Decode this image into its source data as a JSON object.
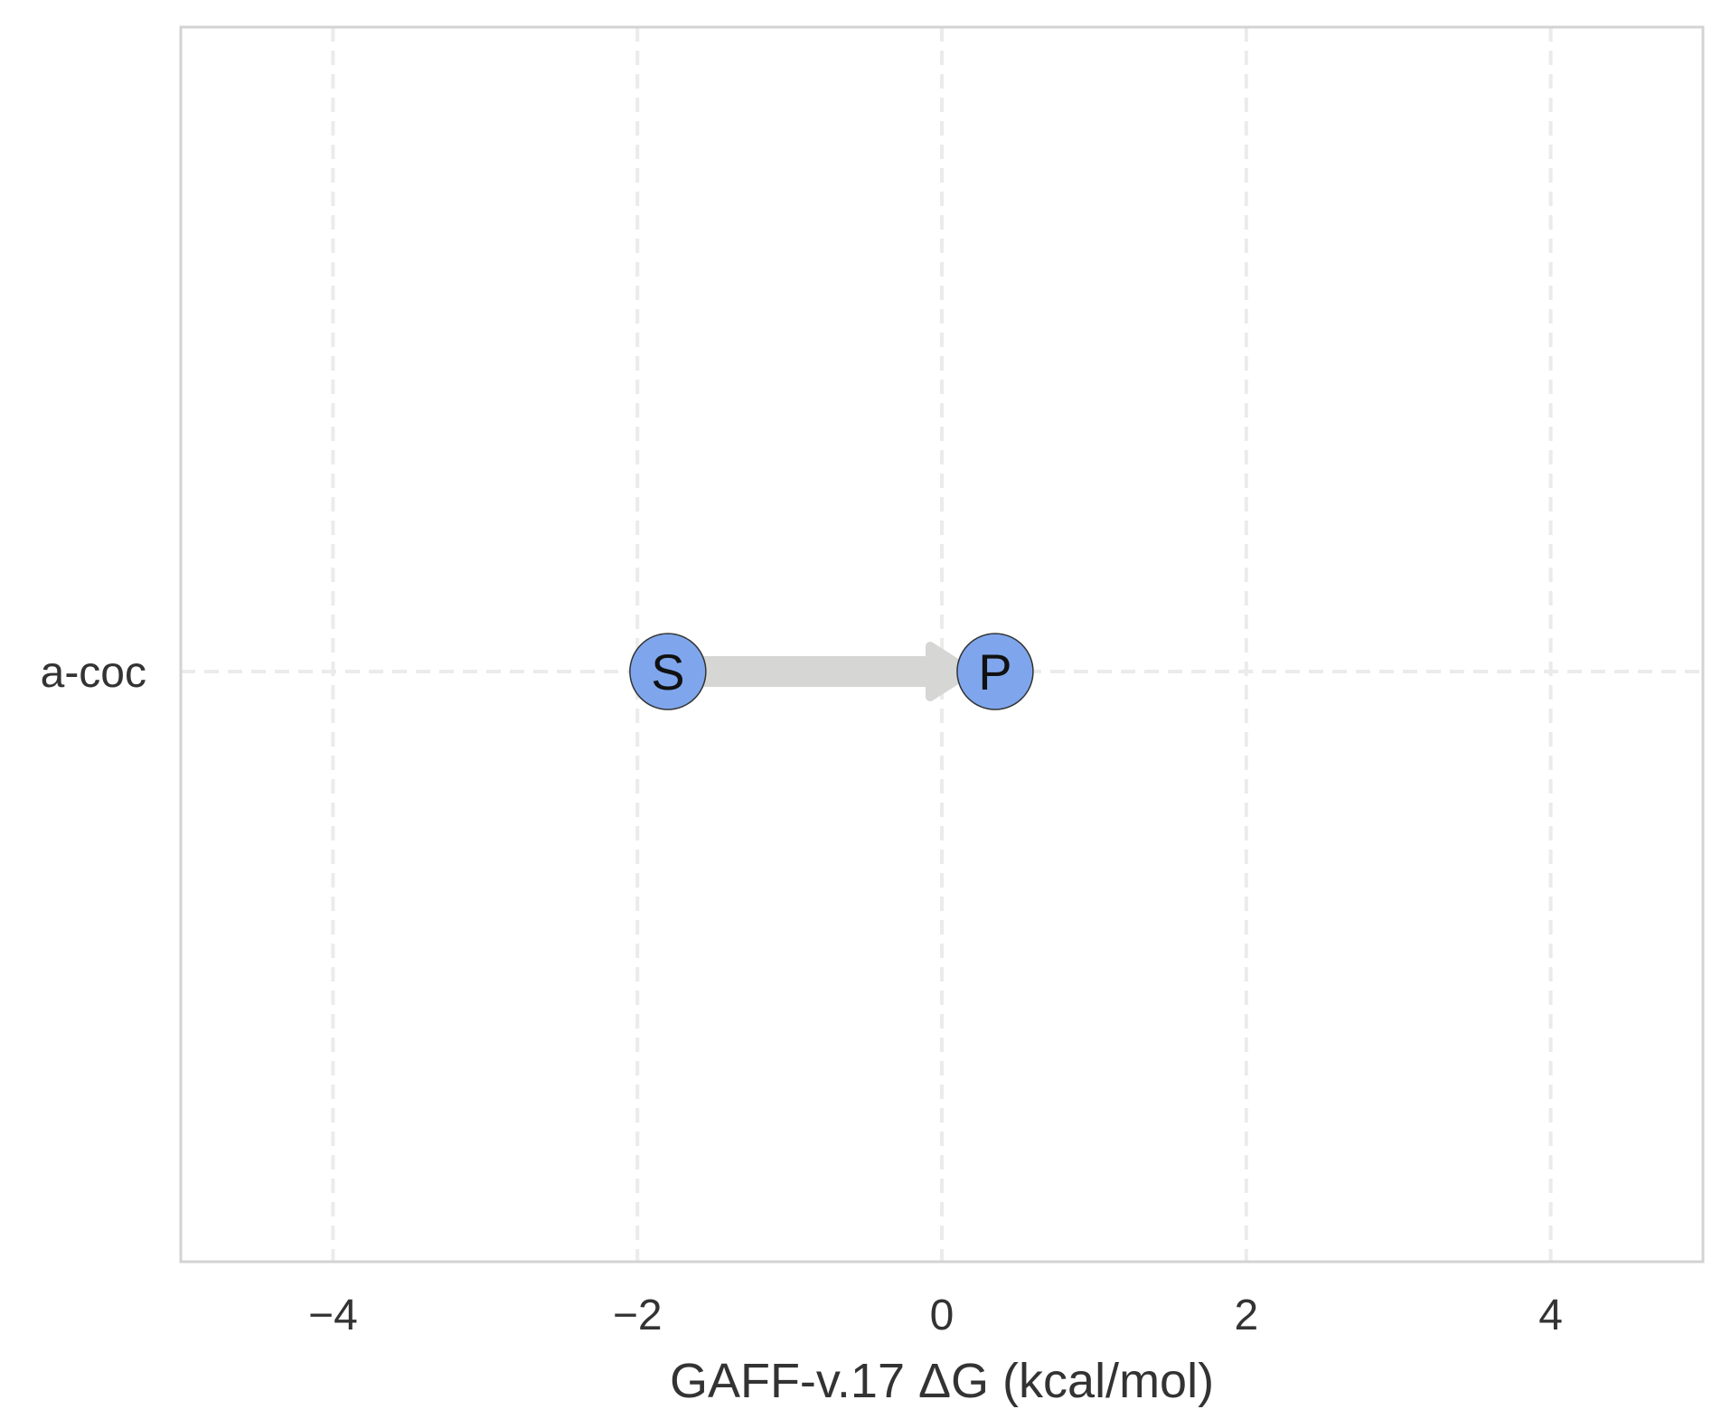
{
  "chart_data": {
    "type": "scatter",
    "xlabel": "GAFF-v.17 ΔG (kcal/mol)",
    "xlim": [
      -5,
      5
    ],
    "xticks": [
      -4,
      -2,
      0,
      2,
      4
    ],
    "xtick_labels": [
      "−4",
      "−2",
      "0",
      "2",
      "4"
    ],
    "categories": [
      "a-coc"
    ],
    "grid": true,
    "points": [
      {
        "category": "a-coc",
        "x": -1.8,
        "label": "S"
      },
      {
        "category": "a-coc",
        "x": 0.35,
        "label": "P"
      }
    ],
    "arrow": {
      "from": -1.8,
      "to": 0.35
    },
    "colors": {
      "node_fill": "#7fa6ec",
      "node_stroke": "#333333",
      "arrow": "#d6d6d4",
      "grid": "#ebebeb",
      "frame": "#d3d3d3"
    }
  }
}
